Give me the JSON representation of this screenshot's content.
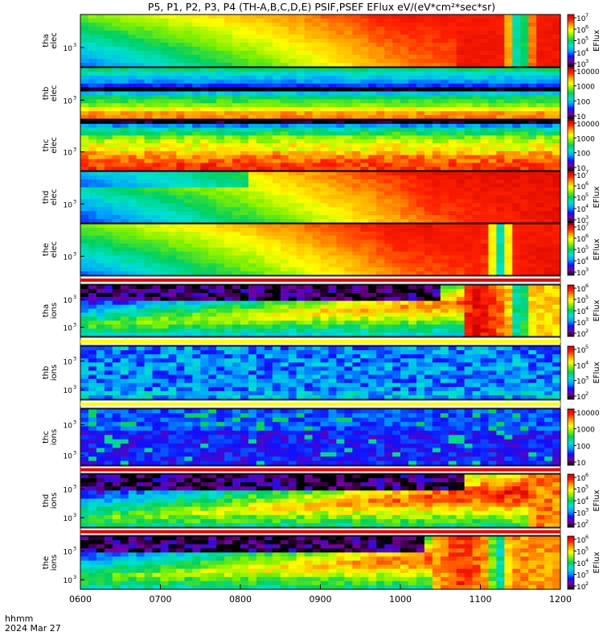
{
  "chart_data": {
    "type": "heatmap",
    "title": "P5, P1, P2, P3, P4 (TH-A,B,C,D,E) PSIF,PSEF EFlux eV/(eV*cm²*sec*sr)",
    "xlabel_line1": "hhmm",
    "xlabel_line2": "2024 Mar 27",
    "x_ticks": [
      "0600",
      "0700",
      "0800",
      "0900",
      "1000",
      "1100",
      "1200"
    ],
    "xlim": [
      "0600",
      "1200"
    ],
    "panels": [
      {
        "label_1": "tha",
        "label_2": "elec",
        "ytick": "10",
        "ytick_exp": "3",
        "cbar_ticks": [
          {
            "b": "10",
            "e": "7"
          },
          {
            "b": "10",
            "e": "6"
          },
          {
            "b": "10",
            "e": "5"
          },
          {
            "b": "10",
            "e": "4"
          },
          {
            "b": "10",
            "e": "3"
          }
        ],
        "cbar_label": "EFlux"
      },
      {
        "label_1": "thb",
        "label_2": "elec",
        "ytick": "10",
        "ytick_exp": "3",
        "cbar_ticks": [
          {
            "b": "10000",
            "e": ""
          },
          {
            "b": "1000",
            "e": ""
          },
          {
            "b": "100",
            "e": ""
          },
          {
            "b": "10",
            "e": ""
          }
        ],
        "cbar_label": ""
      },
      {
        "label_1": "thc",
        "label_2": "elec",
        "ytick": "10",
        "ytick_exp": "3",
        "cbar_ticks": [
          {
            "b": "10000",
            "e": ""
          },
          {
            "b": "1000",
            "e": ""
          },
          {
            "b": "100",
            "e": ""
          },
          {
            "b": "10",
            "e": ""
          }
        ],
        "cbar_label": ""
      },
      {
        "label_1": "thd",
        "label_2": "elec",
        "ytick": "10",
        "ytick_exp": "3",
        "cbar_ticks": [
          {
            "b": "10",
            "e": "7"
          },
          {
            "b": "10",
            "e": "6"
          },
          {
            "b": "10",
            "e": "5"
          },
          {
            "b": "10",
            "e": "4"
          },
          {
            "b": "10",
            "e": "3"
          }
        ],
        "cbar_label": "EFlux"
      },
      {
        "label_1": "the",
        "label_2": "elec",
        "ytick": "10",
        "ytick_exp": "3",
        "cbar_ticks": [
          {
            "b": "10",
            "e": "7"
          },
          {
            "b": "10",
            "e": "6"
          },
          {
            "b": "10",
            "e": "5"
          },
          {
            "b": "10",
            "e": "4"
          },
          {
            "b": "10",
            "e": "3"
          }
        ],
        "cbar_label": "EFlux"
      },
      {
        "label_1": "tha",
        "label_2": "ions",
        "ytick": "10",
        "ytick_exp": "3",
        "ytick2": "10",
        "ytick2_exp": "3",
        "cbar_ticks": [
          {
            "b": "10",
            "e": "6"
          },
          {
            "b": "10",
            "e": "5"
          },
          {
            "b": "10",
            "e": "4"
          },
          {
            "b": "10",
            "e": "3"
          },
          {
            "b": "10",
            "e": "2"
          }
        ],
        "cbar_label": "EFlux"
      },
      {
        "label_1": "thb",
        "label_2": "ions",
        "ytick": "10",
        "ytick_exp": "3",
        "ytick2": "10",
        "ytick2_exp": "3",
        "cbar_ticks": [
          {
            "b": "10",
            "e": "5"
          },
          {
            "b": "10",
            "e": "4"
          },
          {
            "b": "10",
            "e": "3"
          },
          {
            "b": "10",
            "e": "2"
          }
        ],
        "cbar_label": "EFlux"
      },
      {
        "label_1": "thc",
        "label_2": "ions",
        "ytick": "10",
        "ytick_exp": "3",
        "ytick2": "10",
        "ytick2_exp": "3",
        "cbar_ticks": [
          {
            "b": "10000",
            "e": ""
          },
          {
            "b": "1000",
            "e": ""
          },
          {
            "b": "100",
            "e": ""
          },
          {
            "b": "10",
            "e": ""
          }
        ],
        "cbar_label": ""
      },
      {
        "label_1": "thd",
        "label_2": "ions",
        "ytick": "10",
        "ytick_exp": "3",
        "ytick2": "10",
        "ytick2_exp": "3",
        "cbar_ticks": [
          {
            "b": "10",
            "e": "6"
          },
          {
            "b": "10",
            "e": "5"
          },
          {
            "b": "10",
            "e": "4"
          },
          {
            "b": "10",
            "e": "3"
          },
          {
            "b": "10",
            "e": "2"
          }
        ],
        "cbar_label": "EFlux"
      },
      {
        "label_1": "the",
        "label_2": "ions",
        "ytick": "10",
        "ytick_exp": "3",
        "ytick2": "10",
        "ytick2_exp": "3",
        "cbar_ticks": [
          {
            "b": "10",
            "e": "6"
          },
          {
            "b": "10",
            "e": "5"
          },
          {
            "b": "10",
            "e": "4"
          },
          {
            "b": "10",
            "e": "3"
          },
          {
            "b": "10",
            "e": "2"
          }
        ],
        "cbar_label": "EFlux"
      }
    ],
    "colormap": [
      "#000000",
      "#7a00a0",
      "#1010ff",
      "#00a0ff",
      "#00e0d0",
      "#00d060",
      "#80f000",
      "#ffff00",
      "#ffa000",
      "#ff2000",
      "#d00000"
    ]
  }
}
